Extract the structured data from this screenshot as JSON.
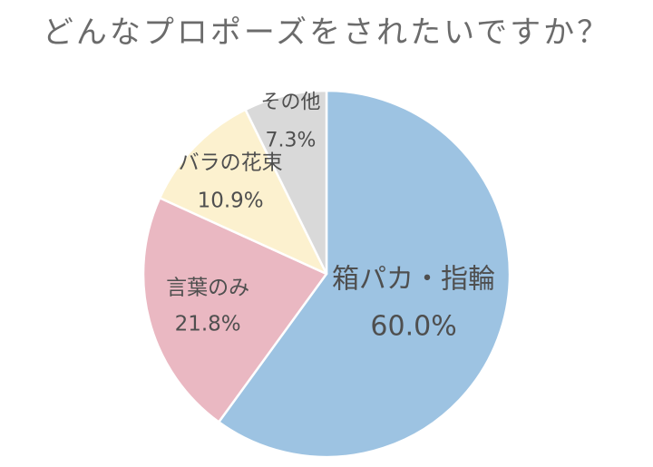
{
  "chart_data": {
    "type": "pie",
    "title": "どんなプロポーズをされたいですか？",
    "unit": "%",
    "slices": [
      {
        "label": "箱パカ・指輪",
        "value": 60.0,
        "display": "60.0%",
        "color": "#9dc3e2"
      },
      {
        "label": "言葉のみ",
        "value": 21.8,
        "display": "21.8%",
        "color": "#eab8c2"
      },
      {
        "label": "バラの花束",
        "value": 10.9,
        "display": "10.9%",
        "color": "#fcf1cf"
      },
      {
        "label": "その他",
        "value": 7.3,
        "display": "7.3%",
        "color": "#d9d9d9"
      }
    ],
    "start": "12 o'clock",
    "direction": "clockwise",
    "legend": "none",
    "border_color": "#ffffff"
  }
}
